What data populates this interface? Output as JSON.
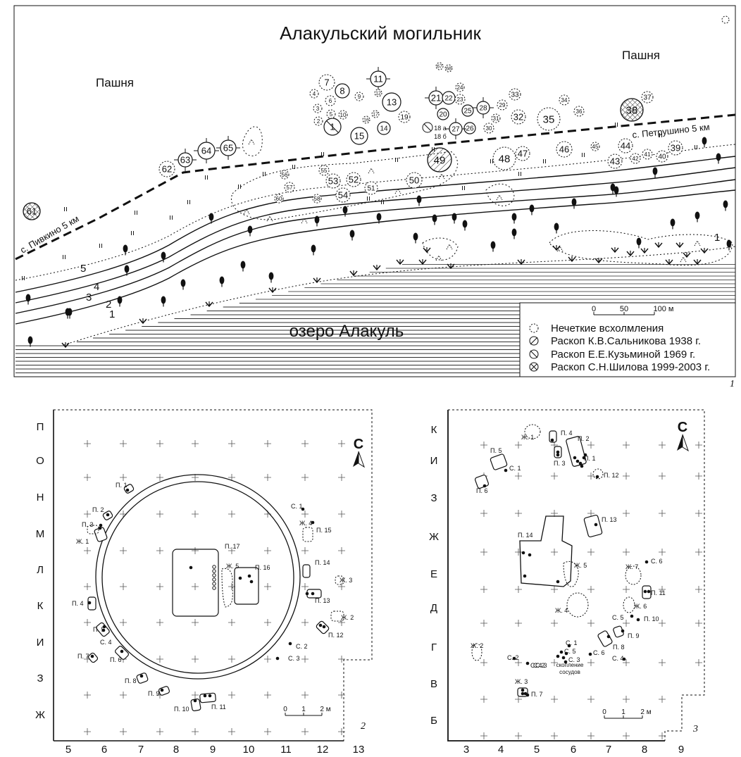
{
  "map1": {
    "title": "Алакульский могильник",
    "field_left": "Пашня",
    "field_right": "Пашня",
    "lake": "озеро Алакуль",
    "road_left": "с. Пивкино 5 км",
    "road_right": "с. Петрушино 5 км",
    "scale": {
      "t0": "0",
      "t50": "50",
      "t100": "100 м"
    },
    "legend": [
      {
        "label": "Нечеткие всхолмления",
        "symbol": "dashed-circle"
      },
      {
        "label": "Раскоп К.В.Сальникова 1938 г.",
        "symbol": "hatched-circle"
      },
      {
        "label": "Раскоп Е.Е.Кузьминой 1969 г.",
        "symbol": "backslash-circle"
      },
      {
        "label": "Раскоп С.Н.Шилова 1999-2003 г.",
        "symbol": "cross-circle"
      }
    ],
    "terraces": [
      "1",
      "2",
      "3",
      "4",
      "5"
    ],
    "figure_number": "1",
    "kurgans": [
      "1",
      "2",
      "3",
      "4",
      "5",
      "6",
      "7",
      "8",
      "9",
      "10",
      "11",
      "12",
      "13",
      "14",
      "15",
      "16",
      "17",
      "18 а",
      "18 б",
      "19",
      "20",
      "21",
      "22",
      "23",
      "24",
      "25",
      "26",
      "27",
      "28",
      "29",
      "30",
      "31",
      "32",
      "33",
      "34",
      "35",
      "36",
      "37",
      "38",
      "39",
      "40",
      "41",
      "42",
      "43",
      "44",
      "45",
      "46",
      "47",
      "48",
      "49",
      "50",
      "51",
      "52",
      "53",
      "54",
      "55",
      "56",
      "57",
      "58",
      "60",
      "61",
      "62",
      "63",
      "64",
      "65",
      "67",
      "68"
    ]
  },
  "map2": {
    "north": "С",
    "rows": [
      "П",
      "О",
      "Н",
      "М",
      "Л",
      "К",
      "И",
      "З",
      "Ж"
    ],
    "cols": [
      "5",
      "6",
      "7",
      "8",
      "9",
      "10",
      "11",
      "12",
      "13"
    ],
    "figure_number": "2",
    "scale": {
      "t0": "0",
      "t1": "1",
      "t2": "2 м"
    },
    "labels": [
      "П. 1",
      "П. 2",
      "П. 3",
      "Ж. 1",
      "П. 4",
      "П. 5",
      "С. 4",
      "П. 7",
      "П. 6",
      "П. 8",
      "П. 9",
      "П. 10",
      "П. 11",
      "П. 17",
      "Ж. 5",
      "П. 16",
      "С. 1",
      "Ж. 4",
      "П. 15",
      "П. 14",
      "Ж. 3",
      "П. 13",
      "Ж. 2",
      "П. 12",
      "С. 2",
      "С. 3"
    ]
  },
  "map3": {
    "north": "С",
    "rows": [
      "К",
      "И",
      "З",
      "Ж",
      "Е",
      "Д",
      "Г",
      "В",
      "Б"
    ],
    "cols": [
      "3",
      "4",
      "5",
      "6",
      "7",
      "8",
      "9"
    ],
    "figure_number": "3",
    "scale": {
      "t0": "0",
      "t1": "1",
      "t2": "2 м"
    },
    "labels": [
      "Ж. 1",
      "П. 4",
      "П. 2",
      "П. 5",
      "С. 1",
      "П. 3",
      "П. 1",
      "П. 12",
      "П. 6",
      "П. 13",
      "П. 14",
      "Ж. 5",
      "Ж. 7",
      "С. 6",
      "П. 11",
      "Ж. 6",
      "Ж. 4",
      "С. 5",
      "П. 10",
      "П. 9",
      "П. 8",
      "С. 1",
      "С. 4",
      "С. 5",
      "С. 3",
      "С. 2",
      "С. 6",
      "С. 4",
      "Ж. 2",
      "С. 2",
      "С. 3",
      "Ж. 3",
      "П. 7"
    ],
    "cluster_label_1": "скопление",
    "cluster_label_2": "сосудов"
  }
}
